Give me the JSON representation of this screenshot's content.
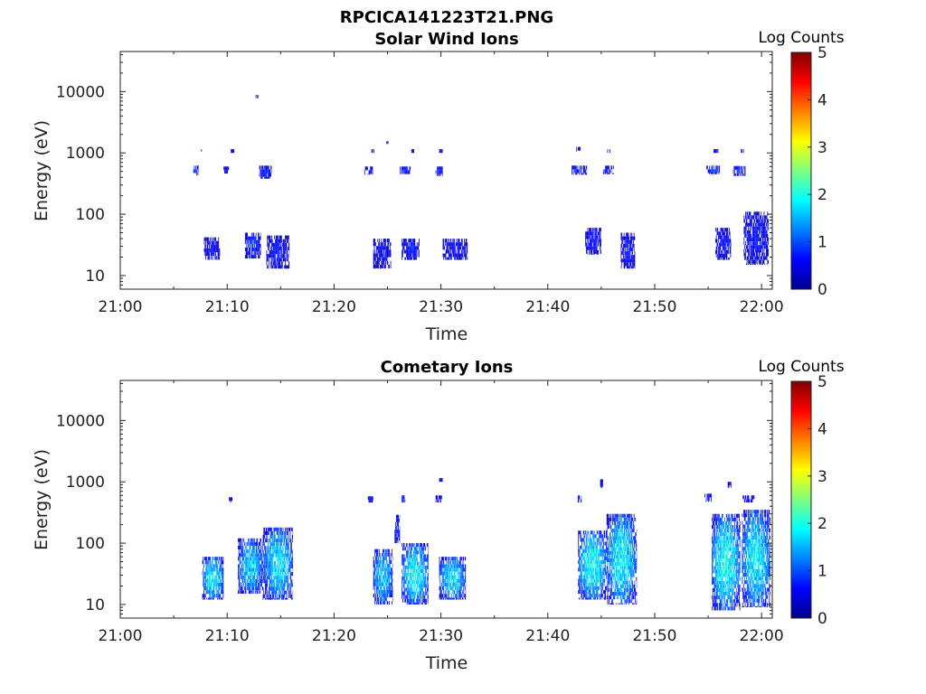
{
  "figure_title": "RPCICA141223T21.PNG",
  "colormap": [
    "#00008f",
    "#0000ff",
    "#0080ff",
    "#00ffff",
    "#80ff80",
    "#ffff00",
    "#ff8000",
    "#ff0000",
    "#800000"
  ],
  "chart_data": [
    {
      "type": "heatmap",
      "title": "Solar Wind Ions",
      "xlabel": "Time",
      "ylabel": "Energy (eV)",
      "x_range": [
        "21:00",
        "22:01"
      ],
      "x_ticks": [
        "21:00",
        "21:10",
        "21:20",
        "21:30",
        "21:40",
        "21:50",
        "22:00"
      ],
      "y_scale": "log",
      "y_range": [
        6,
        45000
      ],
      "y_ticks": [
        "10",
        "100",
        "1000",
        "10000"
      ],
      "colorbar": {
        "label": "Log Counts",
        "range": [
          0,
          5
        ],
        "ticks": [
          "0",
          "1",
          "2",
          "3",
          "4",
          "5"
        ]
      },
      "clusters": [
        {
          "t0": "21:06:50",
          "t1": "21:07:20",
          "e0": 430,
          "e1": 620,
          "c": 0.9
        },
        {
          "t0": "21:07:30",
          "t1": "21:07:45",
          "e0": 1050,
          "e1": 1150,
          "c": 0.5
        },
        {
          "t0": "21:09:40",
          "t1": "21:10:10",
          "e0": 460,
          "e1": 600,
          "c": 0.6
        },
        {
          "t0": "21:10:20",
          "t1": "21:10:40",
          "e0": 1000,
          "e1": 1150,
          "c": 0.5
        },
        {
          "t0": "21:12:40",
          "t1": "21:12:55",
          "e0": 7800,
          "e1": 8800,
          "c": 0.4
        },
        {
          "t0": "21:13:00",
          "t1": "21:14:10",
          "e0": 380,
          "e1": 620,
          "c": 0.7
        },
        {
          "t0": "21:07:50",
          "t1": "21:09:20",
          "e0": 18,
          "e1": 42,
          "c": 0.6
        },
        {
          "t0": "21:11:40",
          "t1": "21:13:10",
          "e0": 19,
          "e1": 50,
          "c": 0.7
        },
        {
          "t0": "21:13:40",
          "t1": "21:15:50",
          "e0": 13,
          "e1": 45,
          "c": 0.6
        },
        {
          "t0": "21:22:50",
          "t1": "21:23:40",
          "e0": 440,
          "e1": 600,
          "c": 0.6
        },
        {
          "t0": "21:23:30",
          "t1": "21:23:50",
          "e0": 1000,
          "e1": 1150,
          "c": 0.5
        },
        {
          "t0": "21:24:50",
          "t1": "21:25:05",
          "e0": 1400,
          "e1": 1550,
          "c": 0.4
        },
        {
          "t0": "21:26:10",
          "t1": "21:27:10",
          "e0": 450,
          "e1": 600,
          "c": 0.7
        },
        {
          "t0": "21:27:10",
          "t1": "21:27:30",
          "e0": 1000,
          "e1": 1150,
          "c": 0.5
        },
        {
          "t0": "21:29:30",
          "t1": "21:30:10",
          "e0": 420,
          "e1": 600,
          "c": 0.7
        },
        {
          "t0": "21:29:50",
          "t1": "21:30:10",
          "e0": 1000,
          "e1": 1150,
          "c": 0.5
        },
        {
          "t0": "21:23:40",
          "t1": "21:25:20",
          "e0": 13,
          "e1": 40,
          "c": 0.5
        },
        {
          "t0": "21:26:20",
          "t1": "21:28:00",
          "e0": 18,
          "e1": 40,
          "c": 0.6
        },
        {
          "t0": "21:30:10",
          "t1": "21:32:30",
          "e0": 18,
          "e1": 40,
          "c": 0.5
        },
        {
          "t0": "21:42:10",
          "t1": "21:43:40",
          "e0": 440,
          "e1": 620,
          "c": 0.7
        },
        {
          "t0": "21:42:40",
          "t1": "21:43:10",
          "e0": 1050,
          "e1": 1250,
          "c": 0.5
        },
        {
          "t0": "21:45:10",
          "t1": "21:46:10",
          "e0": 450,
          "e1": 620,
          "c": 0.7
        },
        {
          "t0": "21:45:30",
          "t1": "21:45:50",
          "e0": 1000,
          "e1": 1150,
          "c": 0.5
        },
        {
          "t0": "21:43:30",
          "t1": "21:45:00",
          "e0": 22,
          "e1": 60,
          "c": 0.6
        },
        {
          "t0": "21:46:50",
          "t1": "21:48:10",
          "e0": 13,
          "e1": 50,
          "c": 0.6
        },
        {
          "t0": "21:54:50",
          "t1": "21:56:10",
          "e0": 450,
          "e1": 620,
          "c": 0.8
        },
        {
          "t0": "21:55:30",
          "t1": "21:56:00",
          "e0": 1000,
          "e1": 1150,
          "c": 0.5
        },
        {
          "t0": "21:57:20",
          "t1": "21:58:30",
          "e0": 420,
          "e1": 610,
          "c": 0.8
        },
        {
          "t0": "21:58:00",
          "t1": "21:58:20",
          "e0": 1000,
          "e1": 1150,
          "c": 0.5
        },
        {
          "t0": "21:55:40",
          "t1": "21:57:10",
          "e0": 18,
          "e1": 60,
          "c": 0.6
        },
        {
          "t0": "21:58:20",
          "t1": "22:00:40",
          "e0": 15,
          "e1": 110,
          "c": 0.6
        }
      ]
    },
    {
      "type": "heatmap",
      "title": "Cometary Ions",
      "xlabel": "Time",
      "ylabel": "Energy (eV)",
      "x_range": [
        "21:00",
        "22:01"
      ],
      "x_ticks": [
        "21:00",
        "21:10",
        "21:20",
        "21:30",
        "21:40",
        "21:50",
        "22:00"
      ],
      "y_scale": "log",
      "y_range": [
        6,
        45000
      ],
      "y_ticks": [
        "10",
        "100",
        "1000",
        "10000"
      ],
      "colorbar": {
        "label": "Log Counts",
        "range": [
          0,
          5
        ],
        "ticks": [
          "0",
          "1",
          "2",
          "3",
          "4",
          "5"
        ]
      },
      "clusters": [
        {
          "t0": "21:07:40",
          "t1": "21:09:40",
          "e0": 12,
          "e1": 60,
          "c": 1.6
        },
        {
          "t0": "21:10:10",
          "t1": "21:10:30",
          "e0": 460,
          "e1": 560,
          "c": 0.5
        },
        {
          "t0": "21:11:00",
          "t1": "21:13:20",
          "e0": 15,
          "e1": 120,
          "c": 1.4
        },
        {
          "t0": "21:13:20",
          "t1": "21:16:10",
          "e0": 12,
          "e1": 180,
          "c": 1.5
        },
        {
          "t0": "21:23:10",
          "t1": "21:23:40",
          "e0": 460,
          "e1": 580,
          "c": 0.6
        },
        {
          "t0": "21:23:40",
          "t1": "21:25:30",
          "e0": 10,
          "e1": 80,
          "c": 1.4
        },
        {
          "t0": "21:25:40",
          "t1": "21:26:10",
          "e0": 100,
          "e1": 290,
          "c": 0.7
        },
        {
          "t0": "21:26:20",
          "t1": "21:26:40",
          "e0": 460,
          "e1": 600,
          "c": 0.7
        },
        {
          "t0": "21:26:20",
          "t1": "21:28:50",
          "e0": 10,
          "e1": 100,
          "c": 1.6
        },
        {
          "t0": "21:29:30",
          "t1": "21:30:10",
          "e0": 460,
          "e1": 600,
          "c": 0.6
        },
        {
          "t0": "21:29:50",
          "t1": "21:30:10",
          "e0": 1000,
          "e1": 1150,
          "c": 0.5
        },
        {
          "t0": "21:29:50",
          "t1": "21:32:20",
          "e0": 12,
          "e1": 60,
          "c": 1.5
        },
        {
          "t0": "21:42:40",
          "t1": "21:43:10",
          "e0": 460,
          "e1": 600,
          "c": 0.7
        },
        {
          "t0": "21:44:50",
          "t1": "21:45:10",
          "e0": 800,
          "e1": 1100,
          "c": 0.5
        },
        {
          "t0": "21:42:50",
          "t1": "21:45:30",
          "e0": 12,
          "e1": 160,
          "c": 1.7
        },
        {
          "t0": "21:45:30",
          "t1": "21:48:20",
          "e0": 10,
          "e1": 300,
          "c": 1.6
        },
        {
          "t0": "21:54:40",
          "t1": "21:55:20",
          "e0": 470,
          "e1": 640,
          "c": 0.7
        },
        {
          "t0": "21:56:50",
          "t1": "21:57:10",
          "e0": 800,
          "e1": 1000,
          "c": 0.5
        },
        {
          "t0": "21:55:20",
          "t1": "21:58:00",
          "e0": 8,
          "e1": 300,
          "c": 1.7
        },
        {
          "t0": "21:58:10",
          "t1": "21:59:20",
          "e0": 460,
          "e1": 600,
          "c": 0.6
        },
        {
          "t0": "21:58:10",
          "t1": "22:00:50",
          "e0": 9,
          "e1": 350,
          "c": 1.6
        }
      ]
    }
  ]
}
